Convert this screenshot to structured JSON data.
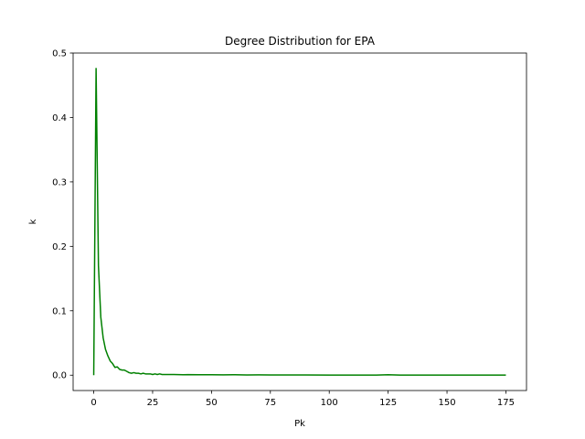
{
  "chart_data": {
    "type": "line",
    "title": "Degree Distribution for EPA",
    "xlabel": "Pk",
    "ylabel": "k",
    "xlim": [
      -8.75,
      183.75
    ],
    "ylim": [
      -0.0238,
      0.5
    ],
    "x_ticks": [
      0,
      25,
      50,
      75,
      100,
      125,
      150,
      175
    ],
    "y_ticks": [
      0.0,
      0.1,
      0.2,
      0.3,
      0.4,
      0.5
    ],
    "x_tick_labels": [
      "0",
      "25",
      "50",
      "75",
      "100",
      "125",
      "150",
      "175"
    ],
    "y_tick_labels": [
      "0.0",
      "0.1",
      "0.2",
      "0.3",
      "0.4",
      "0.5"
    ],
    "grid": false,
    "legend": "none",
    "series": [
      {
        "color": "#008000",
        "x": [
          0,
          1,
          2,
          3,
          4,
          5,
          6,
          7,
          8,
          9,
          10,
          11,
          12,
          13,
          14,
          15,
          16,
          17,
          18,
          19,
          20,
          21,
          22,
          23,
          24,
          25,
          26,
          27,
          28,
          29,
          30,
          32,
          34,
          36,
          38,
          40,
          45,
          50,
          55,
          60,
          65,
          70,
          75,
          80,
          90,
          100,
          110,
          120,
          125,
          130,
          140,
          150,
          160,
          170,
          175
        ],
        "y": [
          0.0,
          0.476,
          0.17,
          0.09,
          0.058,
          0.04,
          0.03,
          0.022,
          0.018,
          0.012,
          0.013,
          0.009,
          0.008,
          0.008,
          0.006,
          0.004,
          0.003,
          0.004,
          0.003,
          0.003,
          0.002,
          0.003,
          0.002,
          0.002,
          0.002,
          0.001,
          0.002,
          0.001,
          0.002,
          0.001,
          0.001,
          0.001,
          0.001,
          0.0008,
          0.0007,
          0.0008,
          0.0006,
          0.0006,
          0.0005,
          0.0007,
          0.0004,
          0.0005,
          0.0003,
          0.0004,
          0.0003,
          0.0002,
          0.0002,
          0.0002,
          0.0006,
          0.0002,
          0.0002,
          0.0001,
          0.0002,
          0.0001,
          0.0002
        ]
      }
    ]
  }
}
